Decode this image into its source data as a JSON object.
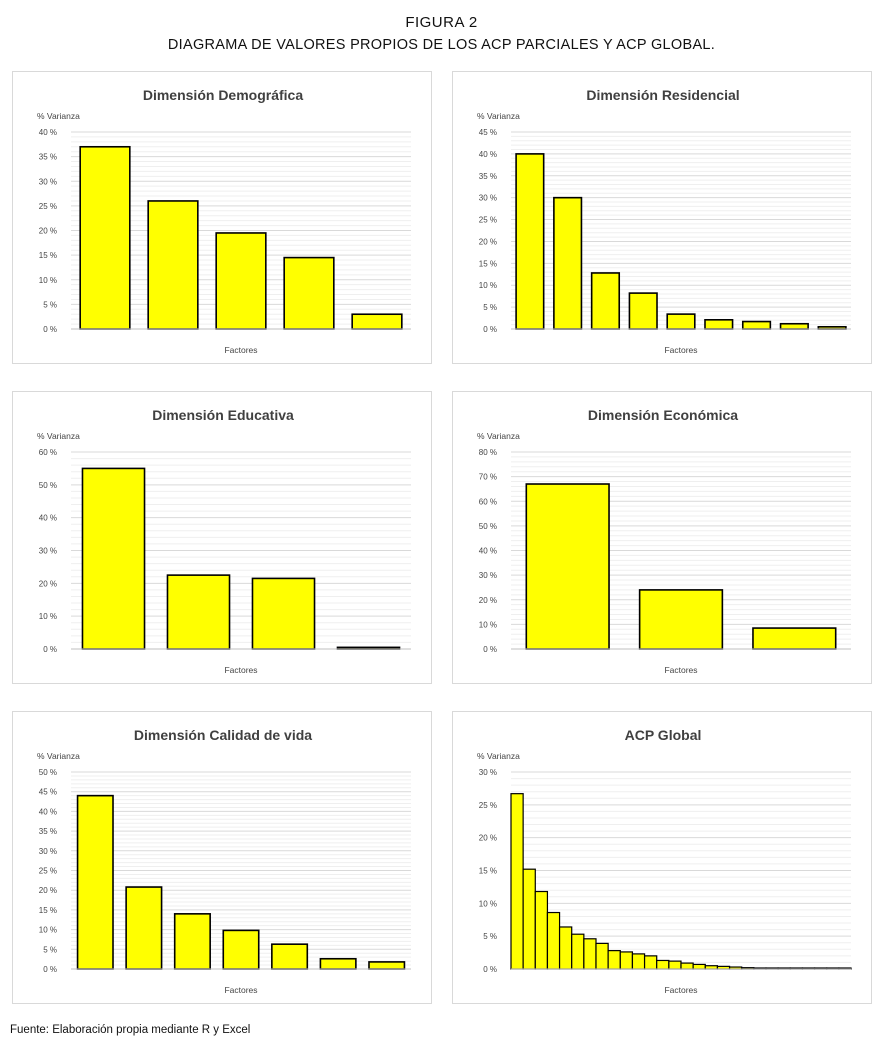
{
  "figure": {
    "label": "FIGURA 2",
    "title": "DIAGRAMA DE VALORES PROPIOS DE LOS ACP PARCIALES Y ACP GLOBAL."
  },
  "source": "Fuente: Elaboración propia mediante R y Excel",
  "colors": {
    "bar_fill": "#ffff00",
    "bar_stroke": "#000000",
    "grid": "#d9d9d9"
  },
  "chart_data": [
    {
      "type": "bar",
      "title": "Dimensión Demográfica",
      "ylabel": "% Varianza",
      "xlabel": "Factores",
      "ylim": [
        0,
        40
      ],
      "yticks": [
        "0 %",
        "5 %",
        "10 %",
        "15 %",
        "20 %",
        "25 %",
        "30 %",
        "35 %",
        "40 %"
      ],
      "values": [
        37,
        26,
        19.5,
        14.5,
        3
      ],
      "grid": true
    },
    {
      "type": "bar",
      "title": "Dimensión Residencial",
      "ylabel": "% Varianza",
      "xlabel": "Factores",
      "ylim": [
        0,
        45
      ],
      "yticks": [
        "0 %",
        "5 %",
        "10 %",
        "15 %",
        "20 %",
        "25 %",
        "30 %",
        "35 %",
        "40 %",
        "45 %"
      ],
      "values": [
        40,
        30,
        12.8,
        8.2,
        3.4,
        2.1,
        1.7,
        1.2,
        0.5
      ],
      "grid": true
    },
    {
      "type": "bar",
      "title": "Dimensión Educativa",
      "ylabel": "% Varianza",
      "xlabel": "Factores",
      "ylim": [
        0,
        60
      ],
      "yticks": [
        "0 %",
        "10 %",
        "20 %",
        "30 %",
        "40 %",
        "50 %",
        "60 %"
      ],
      "values": [
        55,
        22.5,
        21.5,
        0.5
      ],
      "grid": true
    },
    {
      "type": "bar",
      "title": "Dimensión Económica",
      "ylabel": "% Varianza",
      "xlabel": "Factores",
      "ylim": [
        0,
        80
      ],
      "yticks": [
        "0 %",
        "10 %",
        "20 %",
        "30 %",
        "40 %",
        "50 %",
        "60 %",
        "70 %",
        "80 %"
      ],
      "values": [
        67,
        24,
        8.5
      ],
      "grid": true
    },
    {
      "type": "bar",
      "title": "Dimensión Calidad de vida",
      "ylabel": "% Varianza",
      "xlabel": "Factores",
      "ylim": [
        0,
        50
      ],
      "yticks": [
        "0 %",
        "5 %",
        "10 %",
        "15 %",
        "20 %",
        "25 %",
        "30 %",
        "35 %",
        "40 %",
        "45 %",
        "50 %"
      ],
      "values": [
        44,
        20.8,
        14,
        9.8,
        6.3,
        2.6,
        1.8
      ],
      "grid": true
    },
    {
      "type": "bar",
      "title": "ACP Global",
      "ylabel": "% Varianza",
      "xlabel": "Factores",
      "ylim": [
        0,
        30
      ],
      "yticks": [
        "0 %",
        "5 %",
        "10 %",
        "15 %",
        "20 %",
        "25 %",
        "30 %"
      ],
      "values": [
        26.7,
        15.2,
        11.8,
        8.6,
        6.4,
        5.3,
        4.6,
        3.9,
        2.8,
        2.6,
        2.3,
        2.0,
        1.3,
        1.2,
        0.9,
        0.7,
        0.5,
        0.4,
        0.3,
        0.2,
        0.15,
        0.1,
        0.08,
        0.06,
        0.04,
        0.03,
        0.02,
        0.01
      ],
      "grid": true
    }
  ]
}
